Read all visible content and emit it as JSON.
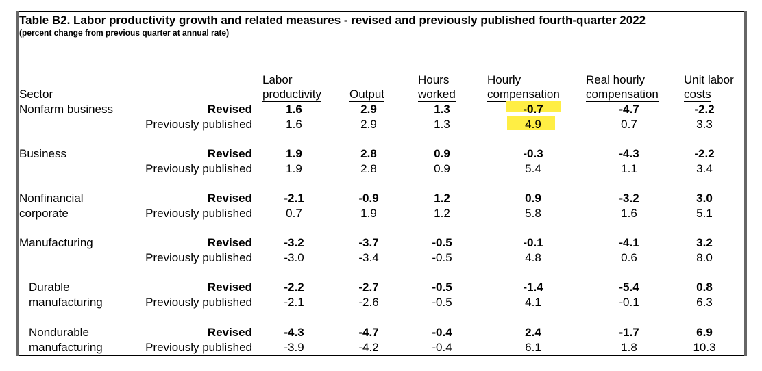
{
  "title": "Table B2. Labor productivity growth and related measures - revised and previously published fourth-quarter 2022",
  "subtitle": "(percent change from previous quarter at annual rate)",
  "headers": {
    "sector": "Sector",
    "labor_productivity": [
      "Labor",
      "productivity"
    ],
    "output": "Output",
    "hours_worked": [
      "Hours",
      "worked"
    ],
    "hourly_compensation": [
      "Hourly",
      "compensation"
    ],
    "real_hourly_compensation": [
      "Real hourly",
      "compensation"
    ],
    "unit_labor_costs": [
      "Unit labor",
      "costs"
    ]
  },
  "labels": {
    "revised": "Revised",
    "previously_published": "Previously published"
  },
  "highlight_color": "#ffee44",
  "rows": [
    {
      "sector": [
        "Nonfarm business"
      ],
      "indent": false,
      "revised": [
        "1.6",
        "2.9",
        "1.3",
        "-0.7",
        "-4.7",
        "-2.2"
      ],
      "previous": [
        "1.6",
        "2.9",
        "1.3",
        "4.9",
        "0.7",
        "3.3"
      ]
    },
    {
      "sector": [
        "Business"
      ],
      "indent": false,
      "revised": [
        "1.9",
        "2.8",
        "0.9",
        "-0.3",
        "-4.3",
        "-2.2"
      ],
      "previous": [
        "1.9",
        "2.8",
        "0.9",
        "5.4",
        "1.1",
        "3.4"
      ]
    },
    {
      "sector": [
        "Nonfinancial",
        "corporate"
      ],
      "indent": false,
      "revised": [
        "-2.1",
        "-0.9",
        "1.2",
        "0.9",
        "-3.2",
        "3.0"
      ],
      "previous": [
        "0.7",
        "1.9",
        "1.2",
        "5.8",
        "1.6",
        "5.1"
      ]
    },
    {
      "sector": [
        "Manufacturing"
      ],
      "indent": false,
      "revised": [
        "-3.2",
        "-3.7",
        "-0.5",
        "-0.1",
        "-4.1",
        "3.2"
      ],
      "previous": [
        "-3.0",
        "-3.4",
        "-0.5",
        "4.8",
        "0.6",
        "8.0"
      ]
    },
    {
      "sector": [
        "Durable",
        "manufacturing"
      ],
      "indent": true,
      "revised": [
        "-2.2",
        "-2.7",
        "-0.5",
        "-1.4",
        "-5.4",
        "0.8"
      ],
      "previous": [
        "-2.1",
        "-2.6",
        "-0.5",
        "4.1",
        "-0.1",
        "6.3"
      ]
    },
    {
      "sector": [
        "Nondurable",
        "manufacturing"
      ],
      "indent": true,
      "revised": [
        "-4.3",
        "-4.7",
        "-0.4",
        "2.4",
        "-1.7",
        "6.9"
      ],
      "previous": [
        "-3.9",
        "-4.2",
        "-0.4",
        "6.1",
        "1.8",
        "10.3"
      ]
    }
  ]
}
